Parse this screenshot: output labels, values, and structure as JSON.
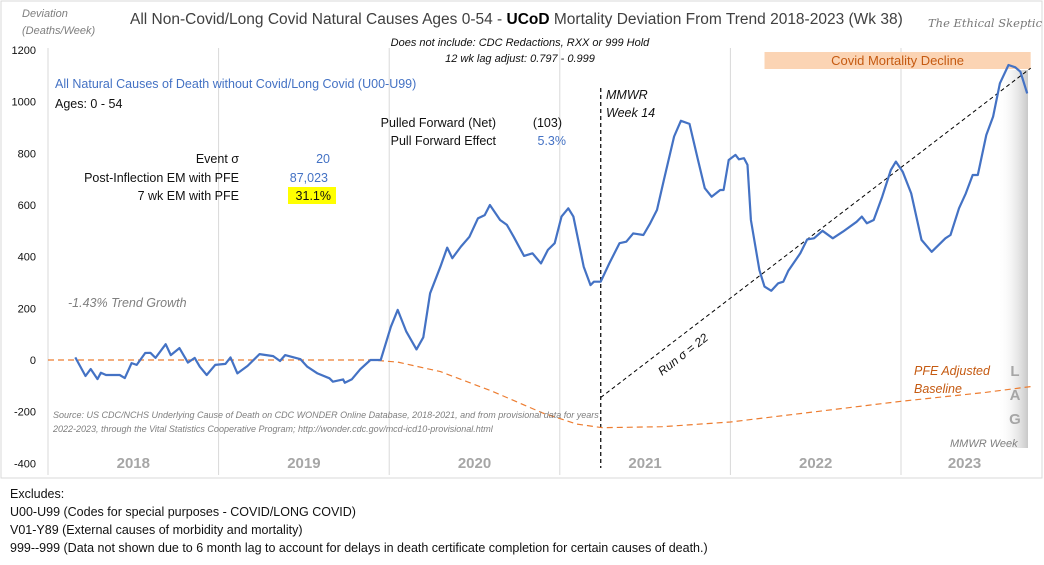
{
  "chart_data": {
    "type": "line",
    "title_prefix": "All Non-Covid/Long Covid Natural Causes Ages 0-54 - ",
    "title_bold": "UCoD",
    "title_suffix": " Mortality Deviation  From Trend  2018-2023 (Wk 38)",
    "brand": "The Ethical Skeptic",
    "ylabel_line1": "Deviation",
    "ylabel_line2": "(Deaths/Week)",
    "subtitle_line1": "Does not include: CDC Redactions,  RXX or 999 Hold",
    "subtitle_line2": "12 wk lag adjust: 0.797 - 0.999",
    "ylim": [
      -400,
      1200
    ],
    "yticks": [
      1200,
      1000,
      800,
      600,
      400,
      200,
      0,
      -200,
      -400
    ],
    "xlim": [
      2018.0,
      2023.76
    ],
    "year_labels": [
      "2018",
      "2019",
      "2020",
      "2021",
      "2022",
      "2023"
    ],
    "xlabel": "MMWR Week",
    "grid": "vertical year dividers only",
    "series": [
      {
        "name": "All Natural Causes of Death without Covid/Long Covid (U00-U99)",
        "color": "#4472c4",
        "points": [
          [
            2018.16,
            10
          ],
          [
            2018.22,
            -62
          ],
          [
            2018.25,
            -35
          ],
          [
            2018.29,
            -74
          ],
          [
            2018.31,
            -49
          ],
          [
            2018.34,
            -58
          ],
          [
            2018.42,
            -58
          ],
          [
            2018.45,
            -70
          ],
          [
            2018.49,
            -12
          ],
          [
            2018.52,
            -19
          ],
          [
            2018.57,
            27
          ],
          [
            2018.6,
            28
          ],
          [
            2018.63,
            8
          ],
          [
            2018.69,
            61
          ],
          [
            2018.72,
            19
          ],
          [
            2018.77,
            46
          ],
          [
            2018.82,
            -10
          ],
          [
            2018.86,
            8
          ],
          [
            2018.89,
            -26
          ],
          [
            2018.93,
            -58
          ],
          [
            2018.98,
            -19
          ],
          [
            2019.04,
            -15
          ],
          [
            2019.07,
            10
          ],
          [
            2019.11,
            -52
          ],
          [
            2019.17,
            -23
          ],
          [
            2019.24,
            23
          ],
          [
            2019.32,
            15
          ],
          [
            2019.36,
            -4
          ],
          [
            2019.39,
            19
          ],
          [
            2019.48,
            3
          ],
          [
            2019.52,
            -26
          ],
          [
            2019.58,
            -52
          ],
          [
            2019.65,
            -71
          ],
          [
            2019.67,
            -84
          ],
          [
            2019.73,
            -75
          ],
          [
            2019.74,
            -88
          ],
          [
            2019.78,
            -75
          ],
          [
            2019.83,
            -36
          ],
          [
            2019.89,
            0
          ],
          [
            2019.95,
            0
          ],
          [
            2020.01,
            129
          ],
          [
            2020.05,
            194
          ],
          [
            2020.1,
            110
          ],
          [
            2020.16,
            41
          ],
          [
            2020.2,
            88
          ],
          [
            2020.24,
            258
          ],
          [
            2020.3,
            361
          ],
          [
            2020.34,
            435
          ],
          [
            2020.37,
            394
          ],
          [
            2020.42,
            439
          ],
          [
            2020.47,
            477
          ],
          [
            2020.52,
            548
          ],
          [
            2020.56,
            561
          ],
          [
            2020.59,
            600
          ],
          [
            2020.65,
            542
          ],
          [
            2020.69,
            523
          ],
          [
            2020.73,
            477
          ],
          [
            2020.79,
            403
          ],
          [
            2020.84,
            413
          ],
          [
            2020.89,
            374
          ],
          [
            2020.93,
            426
          ],
          [
            2020.97,
            452
          ],
          [
            2021.01,
            555
          ],
          [
            2021.05,
            587
          ],
          [
            2021.08,
            555
          ],
          [
            2021.14,
            361
          ],
          [
            2021.18,
            290
          ],
          [
            2021.2,
            303
          ],
          [
            2021.24,
            303
          ],
          [
            2021.29,
            374
          ],
          [
            2021.35,
            452
          ],
          [
            2021.39,
            458
          ],
          [
            2021.43,
            490
          ],
          [
            2021.49,
            484
          ],
          [
            2021.53,
            529
          ],
          [
            2021.57,
            581
          ],
          [
            2021.61,
            697
          ],
          [
            2021.67,
            865
          ],
          [
            2021.71,
            926
          ],
          [
            2021.76,
            914
          ],
          [
            2021.81,
            774
          ],
          [
            2021.85,
            665
          ],
          [
            2021.89,
            632
          ],
          [
            2021.94,
            658
          ],
          [
            2021.96,
            658
          ],
          [
            2021.99,
            774
          ],
          [
            2022.03,
            794
          ],
          [
            2022.05,
            777
          ],
          [
            2022.08,
            781
          ],
          [
            2022.1,
            755
          ],
          [
            2022.12,
            542
          ],
          [
            2022.17,
            348
          ],
          [
            2022.2,
            284
          ],
          [
            2022.24,
            268
          ],
          [
            2022.28,
            297
          ],
          [
            2022.31,
            303
          ],
          [
            2022.34,
            346
          ],
          [
            2022.41,
            413
          ],
          [
            2022.45,
            467
          ],
          [
            2022.49,
            471
          ],
          [
            2022.54,
            500
          ],
          [
            2022.6,
            471
          ],
          [
            2022.66,
            497
          ],
          [
            2022.74,
            535
          ],
          [
            2022.77,
            555
          ],
          [
            2022.8,
            529
          ],
          [
            2022.84,
            542
          ],
          [
            2022.89,
            632
          ],
          [
            2022.94,
            735
          ],
          [
            2022.97,
            768
          ],
          [
            2023.01,
            729
          ],
          [
            2023.06,
            645
          ],
          [
            2023.12,
            465
          ],
          [
            2023.18,
            419
          ],
          [
            2023.26,
            471
          ],
          [
            2023.29,
            484
          ],
          [
            2023.34,
            587
          ],
          [
            2023.38,
            645
          ],
          [
            2023.42,
            716
          ],
          [
            2023.45,
            716
          ],
          [
            2023.5,
            871
          ],
          [
            2023.54,
            942
          ],
          [
            2023.58,
            1071
          ],
          [
            2023.63,
            1142
          ],
          [
            2023.67,
            1133
          ],
          [
            2023.7,
            1116
          ],
          [
            2023.74,
            1032
          ]
        ]
      },
      {
        "name": "PFE Adjusted Baseline",
        "color": "#ed7d31",
        "style": "dashed",
        "points": [
          [
            2018.0,
            0
          ],
          [
            2019.9,
            0
          ],
          [
            2020.05,
            -8
          ],
          [
            2020.3,
            -45
          ],
          [
            2020.6,
            -120
          ],
          [
            2020.9,
            -205
          ],
          [
            2021.1,
            -248
          ],
          [
            2021.25,
            -262
          ],
          [
            2021.6,
            -258
          ],
          [
            2022.0,
            -240
          ],
          [
            2022.5,
            -200
          ],
          [
            2023.0,
            -160
          ],
          [
            2023.5,
            -125
          ],
          [
            2023.76,
            -103
          ]
        ]
      },
      {
        "name": "Run σ = 22",
        "color": "#000000",
        "style": "dashed",
        "points": [
          [
            2021.24,
            -145
          ],
          [
            2023.76,
            1130
          ]
        ]
      }
    ],
    "vline": {
      "x": 2021.24,
      "label_line1": "MMWR",
      "label_line2": "Week 14"
    },
    "band": {
      "label": "Covid Mortality Decline",
      "x_range": [
        2022.2,
        2023.76
      ],
      "color": "#fbd4b4"
    },
    "lag_labels": [
      "L",
      "A",
      "G"
    ],
    "annotations": {
      "series_label": "All Natural Causes of Death without Covid/Long Covid (U00-U99)",
      "ages": "Ages: 0 - 54",
      "trend_growth": "-1.43% Trend Growth",
      "run_sigma": "Run σ = 22",
      "pfe_line1": "PFE Adjusted",
      "pfe_line2": "Baseline",
      "source_line1": "Source: US CDC/NCHS Underlying Cause of Death on CDC WONDER Online Database, 2018-2021, and from provisional data for years",
      "source_line2": "2022-2023, through the Vital Statistics Cooperative Program; http://wonder.cdc.gov/mcd-icd10-provisional.html"
    },
    "stats": {
      "pulled_forward_label": "Pulled Forward (Net)",
      "pulled_forward_value": "(103)",
      "pull_forward_effect_label": "Pull Forward Effect",
      "pull_forward_effect_value": "5.3%",
      "event_sigma_label": "Event σ",
      "event_sigma_value": "20",
      "post_inflection_label": "Post-Inflection EM with PFE",
      "post_inflection_value": "87,023",
      "seven_wk_label": "7 wk EM with PFE",
      "seven_wk_value": "31.1%"
    }
  },
  "excludes": {
    "heading": "Excludes:",
    "items": [
      "U00-U99 (Codes for special purposes - COVID/LONG COVID)",
      "V01-Y89 (External causes of morbidity and mortality)",
      "999--999 (Data not shown due to 6 month lag to account for delays in death certificate completion for certain causes of death.)"
    ]
  }
}
